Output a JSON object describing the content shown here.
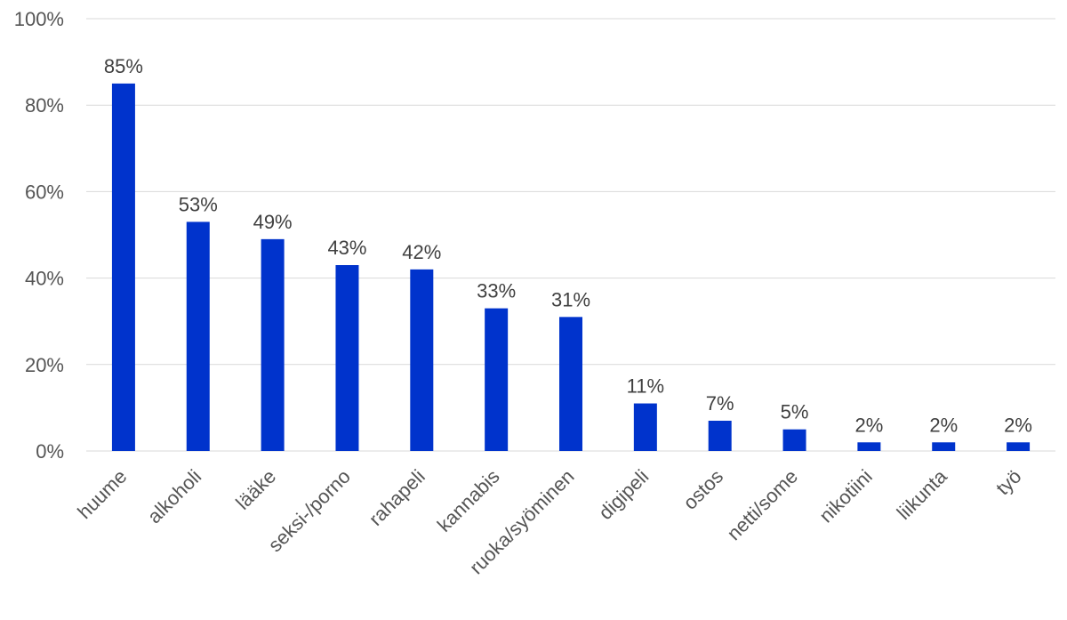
{
  "chart_data": {
    "type": "bar",
    "categories": [
      "huume",
      "alkoholi",
      "lääke",
      "seksi-/porno",
      "rahapeli",
      "kannabis",
      "ruoka/syöminen",
      "digipeli",
      "ostos",
      "netti/some",
      "nikotiini",
      "liikunta",
      "työ"
    ],
    "values": [
      85,
      53,
      49,
      43,
      42,
      33,
      31,
      11,
      7,
      5,
      2,
      2,
      2
    ],
    "data_labels": [
      "85%",
      "53%",
      "49%",
      "43%",
      "42%",
      "33%",
      "31%",
      "11%",
      "7%",
      "5%",
      "2%",
      "2%",
      "2%"
    ],
    "yticks": [
      0,
      20,
      40,
      60,
      80,
      100
    ],
    "ytick_labels": [
      "0%",
      "20%",
      "40%",
      "60%",
      "80%",
      "100%"
    ],
    "ylim": [
      0,
      100
    ],
    "grid": true,
    "legend": "none",
    "bar_color": "#0033CC"
  }
}
